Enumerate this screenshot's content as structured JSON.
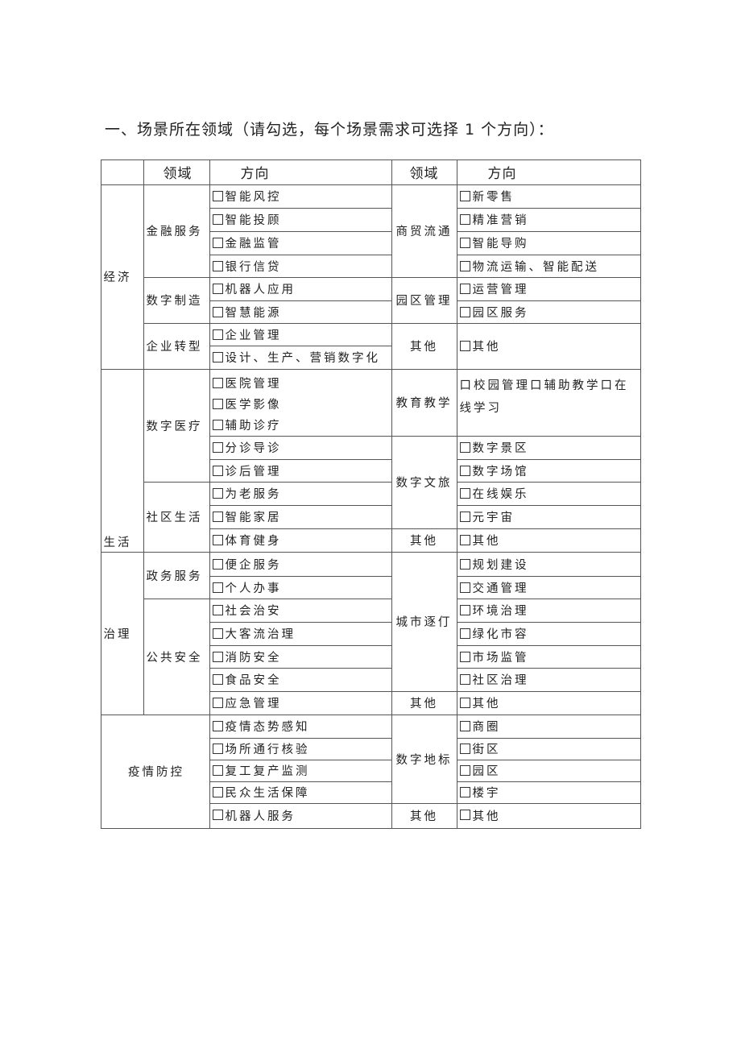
{
  "title": "一、场景所在领域（请勾选，每个场景需求可选择 1 个方向）：",
  "header": {
    "domain": "领域",
    "direction": "方向",
    "domain2": "领域",
    "direction2": "方向"
  },
  "economy": {
    "label": "经济",
    "finance": {
      "label": "金融服务",
      "items": [
        "智能风控",
        "智能投顾",
        "金融监管",
        "银行信贷"
      ]
    },
    "manufacturing": {
      "label": "数字制造",
      "items": [
        "机器人应用",
        "智慧能源"
      ]
    },
    "transformation": {
      "label": "企业转型",
      "items": [
        "企业管理",
        "设计、生产、营销数字化"
      ]
    },
    "commerce": {
      "label": "商贸流通",
      "items": [
        "新零售",
        "精准营销",
        "智能导购",
        "物流运输、智能配送"
      ]
    },
    "park": {
      "label": "园区管理",
      "items": [
        "运营管理",
        "园区服务"
      ]
    },
    "other": {
      "label": "其他",
      "items": [
        "其他"
      ]
    }
  },
  "life": {
    "label": "生活",
    "medical": {
      "label": "数字医疗",
      "items": [
        "医院管理",
        "医学影像",
        "辅助诊疗",
        "分诊导诊",
        "诊后管理"
      ]
    },
    "community": {
      "label": "社区生活",
      "items": [
        "为老服务",
        "智能家居",
        "体育健身"
      ]
    },
    "education": {
      "label": "教育教学",
      "text": "口校园管理口辅助教学口在线学习"
    },
    "culture": {
      "label": "数字文旅",
      "items": [
        "数字景区",
        "数字场馆",
        "在线娱乐",
        "元宇宙"
      ]
    },
    "other": {
      "label": "其他",
      "items": [
        "其他"
      ]
    }
  },
  "governance": {
    "label": "治理",
    "gov": {
      "label": "政务服务",
      "items": [
        "便企服务",
        "个人办事"
      ]
    },
    "safety": {
      "label": "公共安全",
      "items": [
        "社会治安",
        "大客流治理",
        "消防安全",
        "食品安全",
        "应急管理"
      ]
    },
    "city": {
      "label": "城市逐仃",
      "items": [
        "规划建设",
        "交通管理",
        "环境治理",
        "绿化市容",
        "市场监管",
        "社区治理"
      ]
    },
    "other": {
      "label": "其他",
      "items": [
        "其他"
      ]
    }
  },
  "epidemic": {
    "label": "疫情防控",
    "items": [
      "疫情态势感知",
      "场所通行核验",
      "复工复产监测",
      "民众生活保障",
      "机器人服务"
    ],
    "landmark": {
      "label": "数字地标",
      "items": [
        "商圈",
        "街区",
        "园区",
        "楼宇"
      ]
    },
    "other": {
      "label": "其他",
      "items": [
        "其他"
      ]
    }
  }
}
